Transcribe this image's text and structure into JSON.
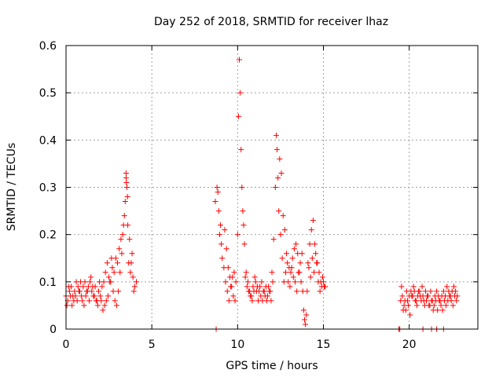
{
  "chart_data": {
    "type": "scatter",
    "title": "Day 252 of 2018, SRMTID for receiver lhaz",
    "xlabel": "GPS time / hours",
    "ylabel": "SRMTID / TECUs",
    "xlim": [
      0,
      24
    ],
    "ylim": [
      0,
      0.6
    ],
    "xticks": [
      0,
      5,
      10,
      15,
      20
    ],
    "xtick_labels": [
      "0",
      "5",
      "10",
      "15",
      "20"
    ],
    "yticks": [
      0,
      0.1,
      0.2,
      0.3,
      0.4,
      0.5,
      0.6
    ],
    "ytick_labels": [
      "0",
      "0.1",
      "0.2",
      "0.3",
      "0.4",
      "0.5",
      "0.6"
    ],
    "grid": true,
    "marker": "+",
    "color": "#ff0000",
    "series": [
      {
        "name": "SRMTID",
        "x": [
          0.0,
          0.1,
          0.2,
          0.3,
          0.4,
          0.5,
          0.6,
          0.7,
          0.8,
          0.9,
          1.0,
          1.1,
          1.2,
          1.3,
          1.4,
          1.5,
          1.6,
          1.7,
          1.8,
          1.9,
          2.0,
          2.1,
          2.2,
          2.3,
          2.4,
          2.5,
          2.6,
          2.7,
          2.8,
          2.9,
          3.0,
          3.1,
          3.2,
          3.3,
          3.4,
          3.5,
          3.55,
          3.6,
          3.7,
          3.8,
          3.9,
          4.0,
          4.1,
          0.05,
          0.15,
          0.25,
          0.35,
          0.45,
          0.55,
          0.65,
          0.75,
          0.85,
          0.95,
          1.05,
          1.15,
          1.25,
          1.35,
          1.45,
          1.55,
          1.65,
          1.75,
          1.85,
          1.95,
          2.05,
          2.15,
          2.25,
          2.35,
          2.45,
          2.55,
          2.65,
          2.75,
          2.85,
          2.95,
          3.05,
          3.15,
          3.25,
          3.35,
          3.45,
          3.5,
          3.52,
          3.58,
          3.65,
          3.75,
          3.85,
          3.95,
          8.7,
          8.8,
          8.85,
          8.9,
          8.95,
          9.0,
          9.05,
          9.1,
          9.2,
          9.3,
          9.4,
          9.5,
          9.6,
          9.7,
          9.8,
          9.9,
          10.0,
          10.05,
          10.1,
          10.15,
          10.2,
          10.25,
          10.3,
          10.35,
          10.4,
          10.5,
          10.6,
          10.7,
          10.8,
          10.9,
          11.0,
          11.1,
          11.2,
          11.3,
          11.4,
          11.5,
          11.6,
          11.7,
          11.8,
          11.9,
          12.0,
          12.1,
          12.2,
          12.25,
          12.3,
          12.35,
          12.4,
          12.5,
          12.6,
          12.7,
          12.8,
          12.9,
          13.0,
          13.1,
          13.2,
          13.3,
          13.4,
          13.5,
          13.6,
          13.7,
          13.8,
          13.85,
          13.9,
          13.95,
          14.0,
          14.1,
          14.2,
          14.3,
          14.4,
          14.5,
          14.6,
          14.7,
          14.8,
          14.9,
          15.0,
          15.1,
          9.25,
          9.35,
          9.45,
          9.55,
          9.65,
          9.75,
          9.85,
          10.45,
          10.55,
          10.65,
          10.75,
          10.85,
          10.95,
          11.05,
          11.15,
          11.25,
          11.35,
          11.45,
          11.55,
          11.65,
          11.75,
          11.85,
          11.95,
          12.05,
          12.45,
          12.55,
          12.65,
          12.75,
          12.85,
          12.95,
          13.05,
          13.15,
          13.25,
          13.35,
          13.45,
          13.55,
          13.65,
          13.75,
          14.05,
          14.15,
          14.25,
          14.35,
          14.45,
          14.55,
          14.65,
          14.75,
          14.85,
          14.95,
          15.05,
          19.5,
          19.6,
          19.7,
          19.8,
          19.9,
          20.0,
          20.1,
          20.2,
          20.3,
          20.4,
          20.5,
          20.6,
          20.7,
          20.8,
          20.9,
          21.0,
          21.1,
          21.2,
          21.3,
          21.4,
          21.5,
          21.6,
          21.7,
          21.8,
          21.9,
          22.0,
          22.1,
          22.2,
          22.3,
          22.4,
          22.5,
          22.6,
          22.7,
          22.8,
          19.55,
          19.65,
          19.75,
          19.85,
          19.95,
          20.05,
          20.15,
          20.25,
          20.35,
          20.45,
          20.55,
          20.65,
          20.75,
          20.85,
          20.95,
          21.05,
          21.15,
          21.25,
          21.35,
          21.45,
          21.55,
          21.65,
          21.75,
          21.85,
          21.95,
          22.05,
          22.15,
          22.25,
          22.35,
          22.45,
          22.55,
          22.65,
          22.75,
          8.75,
          19.4,
          19.45,
          20.8,
          21.3,
          21.6,
          22.0
        ],
        "y": [
          0.07,
          0.06,
          0.08,
          0.09,
          0.07,
          0.08,
          0.1,
          0.09,
          0.08,
          0.07,
          0.09,
          0.1,
          0.08,
          0.09,
          0.1,
          0.08,
          0.07,
          0.09,
          0.06,
          0.08,
          0.07,
          0.09,
          0.1,
          0.12,
          0.14,
          0.11,
          0.1,
          0.13,
          0.12,
          0.15,
          0.14,
          0.17,
          0.19,
          0.2,
          0.24,
          0.32,
          0.3,
          0.22,
          0.19,
          0.14,
          0.11,
          0.09,
          0.1,
          0.05,
          0.09,
          0.07,
          0.05,
          0.06,
          0.07,
          0.06,
          0.08,
          0.1,
          0.06,
          0.05,
          0.07,
          0.08,
          0.06,
          0.11,
          0.09,
          0.07,
          0.06,
          0.05,
          0.1,
          0.06,
          0.04,
          0.05,
          0.06,
          0.07,
          0.1,
          0.15,
          0.08,
          0.06,
          0.05,
          0.08,
          0.12,
          0.16,
          0.22,
          0.27,
          0.33,
          0.31,
          0.28,
          0.14,
          0.12,
          0.16,
          0.08,
          0.27,
          0.3,
          0.29,
          0.25,
          0.2,
          0.22,
          0.18,
          0.15,
          0.13,
          0.1,
          0.08,
          0.06,
          0.09,
          0.11,
          0.12,
          0.1,
          0.2,
          0.45,
          0.57,
          0.5,
          0.38,
          0.3,
          0.25,
          0.22,
          0.18,
          0.12,
          0.1,
          0.08,
          0.07,
          0.09,
          0.11,
          0.08,
          0.06,
          0.09,
          0.1,
          0.08,
          0.07,
          0.06,
          0.09,
          0.08,
          0.12,
          0.19,
          0.3,
          0.41,
          0.38,
          0.32,
          0.25,
          0.2,
          0.15,
          0.1,
          0.12,
          0.14,
          0.13,
          0.12,
          0.15,
          0.17,
          0.18,
          0.16,
          0.12,
          0.1,
          0.08,
          0.04,
          0.02,
          0.01,
          0.03,
          0.14,
          0.18,
          0.21,
          0.23,
          0.18,
          0.14,
          0.1,
          0.08,
          0.09,
          0.1,
          0.09,
          0.21,
          0.17,
          0.13,
          0.11,
          0.09,
          0.07,
          0.06,
          0.11,
          0.09,
          0.08,
          0.07,
          0.06,
          0.08,
          0.1,
          0.09,
          0.08,
          0.07,
          0.06,
          0.08,
          0.09,
          0.07,
          0.08,
          0.06,
          0.1,
          0.36,
          0.33,
          0.24,
          0.21,
          0.16,
          0.1,
          0.09,
          0.13,
          0.11,
          0.1,
          0.08,
          0.12,
          0.14,
          0.16,
          0.08,
          0.13,
          0.11,
          0.15,
          0.12,
          0.16,
          0.14,
          0.12,
          0.1,
          0.11,
          0.09,
          0.06,
          0.07,
          0.05,
          0.04,
          0.06,
          0.07,
          0.08,
          0.07,
          0.08,
          0.06,
          0.07,
          0.08,
          0.06,
          0.07,
          0.05,
          0.06,
          0.07,
          0.05,
          0.06,
          0.04,
          0.07,
          0.08,
          0.07,
          0.06,
          0.07,
          0.08,
          0.07,
          0.09,
          0.08,
          0.07,
          0.08,
          0.09,
          0.08,
          0.07,
          0.09,
          0.04,
          0.06,
          0.08,
          0.05,
          0.03,
          0.07,
          0.09,
          0.06,
          0.05,
          0.08,
          0.07,
          0.09,
          0.06,
          0.08,
          0.07,
          0.05,
          0.08,
          0.06,
          0.05,
          0.06,
          0.04,
          0.06,
          0.05,
          0.04,
          0.06,
          0.05,
          0.06,
          0.07,
          0.06,
          0.05,
          0.07,
          0.06,
          0.0,
          0.0,
          0.0,
          0.0,
          0.0,
          0.0,
          0.0
        ]
      }
    ]
  }
}
